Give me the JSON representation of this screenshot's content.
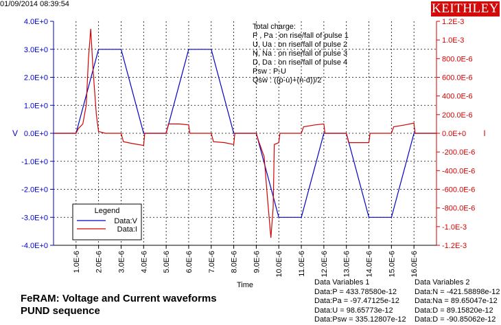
{
  "timestamp": "01/09/2014 08:39:54",
  "brand": "KEITHLEY",
  "footer": {
    "title": "FeRAM: Voltage and Current waveforms",
    "subtitle": "PUND sequence"
  },
  "notes": [
    "Total charge:",
    "P , Pa  :  on rise/fall of pulse 1",
    "U, Ua   :  on rise/fall of pulse 2",
    "N, Na   :  on rise/fall of pulse 3",
    "D, Da   :  on rise/fall of pulse 4",
    "Psw :  P-U",
    "Qsw :  ((p-u)+(n-d))/2"
  ],
  "data_variables_1": {
    "title": "Data Variables 1",
    "items": [
      "Data:P = 433.78580e-12",
      "Data:Pa = -97.47125e-12",
      "Data:U = 98.65773e-12",
      "Data:Psw = 335.12807e-12"
    ]
  },
  "data_variables_2": {
    "title": "Data Variables 2",
    "items": [
      "Data:N = -421.58898e-12",
      "Data:Na = 89.65047e-12",
      "Data:D = 89.15820e-12",
      "Data:D = -90.85062e-12"
    ]
  },
  "colors": {
    "voltage": "#0000c8",
    "current": "#d20000",
    "grid": "#000000"
  },
  "chart_data": {
    "type": "line",
    "xlabel": "Time",
    "ylabel": "V",
    "y2label": "I",
    "xlim": [
      0,
      1.7e-05
    ],
    "ylim": [
      -4.0,
      4.0
    ],
    "y2lim": [
      -0.0012,
      0.0012
    ],
    "grid": true,
    "legend_position": "bottom-left",
    "legend_title": "Legend",
    "x_ticks": [
      "1.0E-6",
      "2.0E-6",
      "3.0E-6",
      "4.0E-6",
      "5.0E-6",
      "6.0E-6",
      "7.0E-6",
      "8.0E-6",
      "9.0E-6",
      "10.0E-6",
      "11.0E-6",
      "12.0E-6",
      "13.0E-6",
      "14.0E-6",
      "15.0E-6",
      "16.0E-6"
    ],
    "y_ticks": [
      "4.0E+0",
      "3.0E+0",
      "2.0E+0",
      "1.0E+0",
      "0.0E+0",
      "-1.0E+0",
      "-2.0E+0",
      "-3.0E+0",
      "-4.0E+0"
    ],
    "y2_ticks": [
      "1.2E-3",
      "1.0E-3",
      "800.0E-6",
      "600.0E-6",
      "400.0E-6",
      "200.0E-6",
      "0.0E+0",
      "-200.0E-6",
      "-400.0E-6",
      "-600.0E-6",
      "-800.0E-6",
      "-1.0E-3",
      "-1.2E-3"
    ],
    "series": [
      {
        "name": "Data:V",
        "axis": "left",
        "x": [
          0,
          1e-06,
          2e-06,
          3e-06,
          4e-06,
          5e-06,
          6e-06,
          7e-06,
          8e-06,
          9e-06,
          1e-05,
          1.1e-05,
          1.2e-05,
          1.3e-05,
          1.4e-05,
          1.5e-05,
          1.6e-05,
          1.7e-05
        ],
        "y": [
          0,
          0,
          3.0,
          3.0,
          0,
          0,
          3.0,
          3.0,
          0,
          0,
          -3.0,
          -3.0,
          0,
          0,
          -3.0,
          -3.0,
          0,
          0
        ]
      },
      {
        "name": "Data:I",
        "axis": "right",
        "x": [
          0,
          1e-06,
          1.1e-06,
          1.3e-06,
          1.45e-06,
          1.55e-06,
          1.65e-06,
          1.75e-06,
          1.9e-06,
          2e-06,
          2.3e-06,
          3e-06,
          3.1e-06,
          3.5e-06,
          4e-06,
          4.05e-06,
          5e-06,
          5.1e-06,
          5.6e-06,
          6e-06,
          6.05e-06,
          7e-06,
          7.1e-06,
          7.6e-06,
          8e-06,
          8.05e-06,
          9e-06,
          9.1e-06,
          9.35e-06,
          9.5e-06,
          9.65e-06,
          9.75e-06,
          9.8e-06,
          1e-05,
          1.005e-05,
          1.1e-05,
          1.11e-05,
          1.16e-05,
          1.2e-05,
          1.205e-05,
          1.3e-05,
          1.31e-05,
          1.36e-05,
          1.4e-05,
          1.405e-05,
          1.5e-05,
          1.51e-05,
          1.56e-05,
          1.6e-05,
          1.605e-05,
          1.7e-05
        ],
        "y": [
          0,
          0,
          5e-05,
          0.0001,
          0.0003,
          0.0008,
          0.00112,
          0.0007,
          0.0002,
          2e-05,
          0,
          0,
          -9e-05,
          -0.00011,
          -0.00013,
          0,
          0,
          0.0001,
          0.0001,
          9e-05,
          0,
          0,
          -9e-05,
          -0.0001,
          -0.00012,
          0,
          0,
          -8e-05,
          -0.00025,
          -0.0007,
          -0.00112,
          -0.0008,
          -0.00012,
          -0.0001,
          0,
          0,
          7e-05,
          9e-05,
          0.0001,
          0,
          0,
          -0.0001,
          -0.0001,
          -0.0001,
          0,
          0,
          7e-05,
          9e-05,
          0.00011,
          0,
          0
        ]
      }
    ]
  }
}
